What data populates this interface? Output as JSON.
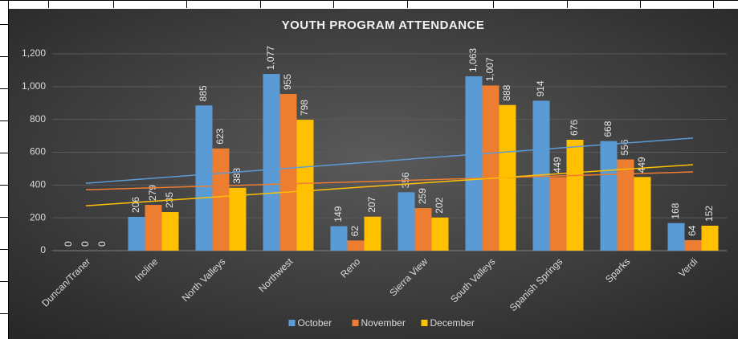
{
  "chart_data": {
    "type": "bar",
    "title": "YOUTH PROGRAM ATTENDANCE",
    "categories": [
      "Duncan/Traner",
      "Incline",
      "North Valleys",
      "Northwest",
      "Reno",
      "Sierra View",
      "South Valleys",
      "Spanish Springs",
      "Sparks",
      "Verdi"
    ],
    "series": [
      {
        "name": "October",
        "color": "#5b9bd5",
        "values": [
          0,
          206,
          885,
          1077,
          149,
          356,
          1063,
          914,
          668,
          168
        ],
        "value_labels": [
          "0",
          "206",
          "885",
          "1,077",
          "149",
          "356",
          "1,063",
          "914",
          "668",
          "168"
        ]
      },
      {
        "name": "November",
        "color": "#ed7d31",
        "values": [
          0,
          279,
          623,
          955,
          62,
          259,
          1007,
          449,
          556,
          64
        ],
        "value_labels": [
          "0",
          "279",
          "623",
          "955",
          "62",
          "259",
          "1,007",
          "449",
          "556",
          "64"
        ]
      },
      {
        "name": "December",
        "color": "#ffc000",
        "values": [
          0,
          235,
          383,
          798,
          207,
          202,
          888,
          676,
          449,
          152
        ],
        "value_labels": [
          "0",
          "235",
          "383",
          "798",
          "207",
          "202",
          "888",
          "676",
          "449",
          "152"
        ]
      }
    ],
    "ylim": [
      0,
      1200
    ],
    "yticks": [
      0,
      200,
      400,
      600,
      800,
      {
        "value": 1000,
        "label": "1,000"
      },
      {
        "value": 1200,
        "label": "1,200"
      }
    ],
    "grid": true,
    "trendline": "linear",
    "legend": "bottom"
  }
}
